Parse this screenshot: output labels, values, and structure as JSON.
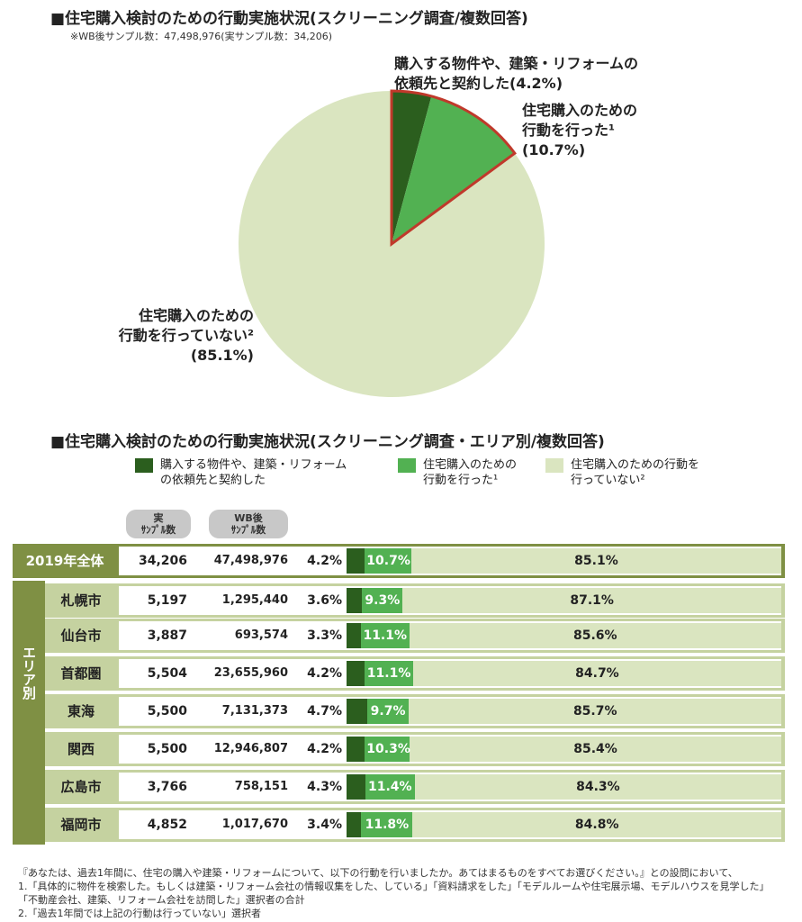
{
  "title1": "■住宅購入検討のための行動実施状況(スクリーニング調査/複数回答)",
  "sample_note": "※WB後サンプル数：47,498,976(実サンプル数：34,206)",
  "pie_labels": {
    "contracted_line1": "購入する物件や、建築・リフォームの",
    "contracted_line2": "依頼先と契約した(4.2%)",
    "action_line1": "住宅購入のための",
    "action_line2": "行動を行った¹",
    "action_line3": "(10.7%)",
    "none_line1": "住宅購入のための",
    "none_line2": "行動を行っていない²",
    "none_line3": "(85.1%)"
  },
  "title2": "■住宅購入検討のための行動実施状況(スクリーニング調査・エリア別/複数回答)",
  "legend": [
    {
      "line1": "購入する物件や、建築・リフォーム",
      "line2": "の依頼先と契約した",
      "color": "#2b5e1e"
    },
    {
      "line1": "住宅購入のための",
      "line2": "行動を行った¹",
      "color": "#52b152"
    },
    {
      "line1": "住宅購入のための行動を",
      "line2": "行っていない²",
      "color": "#dae5c0"
    }
  ],
  "col_headers": {
    "real_l1": "実",
    "real_l2": "ｻﾝﾌﾟﾙ数",
    "wb_l1": "WB後",
    "wb_l2": "ｻﾝﾌﾟﾙ数"
  },
  "side_label": "エリア別",
  "colors": {
    "contracted": "#2b5e1e",
    "action": "#52b152",
    "none": "#dae5c0",
    "outline": "#c0392b",
    "header_bg": "#7f9044",
    "row_bg": "#c5d2a0"
  },
  "chart_data": [
    {
      "type": "pie",
      "slices": [
        {
          "label": "購入する物件や、建築・リフォームの依頼先と契約した",
          "value": 4.2
        },
        {
          "label": "住宅購入のための行動を行った",
          "value": 10.7
        },
        {
          "label": "住宅購入のための行動を行っていない",
          "value": 85.1
        }
      ]
    },
    {
      "type": "bar",
      "stacked": true,
      "horizontal": true,
      "categories": [
        "2019年全体",
        "札幌市",
        "仙台市",
        "首都圏",
        "東海",
        "関西",
        "広島市",
        "福岡市"
      ],
      "real_samples": [
        "34,206",
        "5,197",
        "3,887",
        "5,504",
        "5,500",
        "5,500",
        "3,766",
        "4,852"
      ],
      "wb_samples": [
        "47,498,976",
        "1,295,440",
        "693,574",
        "23,655,960",
        "7,131,373",
        "12,946,807",
        "758,151",
        "1,017,670"
      ],
      "series": [
        {
          "name": "購入する物件や、建築・リフォームの依頼先と契約した",
          "values": [
            4.2,
            3.6,
            3.3,
            4.2,
            4.7,
            4.2,
            4.3,
            3.4
          ]
        },
        {
          "name": "住宅購入のための行動を行った",
          "values": [
            10.7,
            9.3,
            11.1,
            11.1,
            9.7,
            10.3,
            11.4,
            11.8
          ]
        },
        {
          "name": "住宅購入のための行動を行っていない",
          "values": [
            85.1,
            87.1,
            85.6,
            84.7,
            85.7,
            85.4,
            84.3,
            84.8
          ]
        }
      ]
    }
  ],
  "footnotes": [
    "『あなたは、過去1年間に、住宅の購入や建築・リフォームについて、以下の行動を行いましたか。あてはまるものをすべてお選びください。』との設問において、",
    "1.「具体的に物件を検索した。もしくは建築・リフォーム会社の情報収集をした、している」「資料請求をした」「モデルルームや住宅展示場、モデルハウスを見学した」",
    "「不動産会社、建築、リフォーム会社を訪問した」選択者の合計",
    "2.「過去1年間では上記の行動は行っていない」選択者"
  ]
}
